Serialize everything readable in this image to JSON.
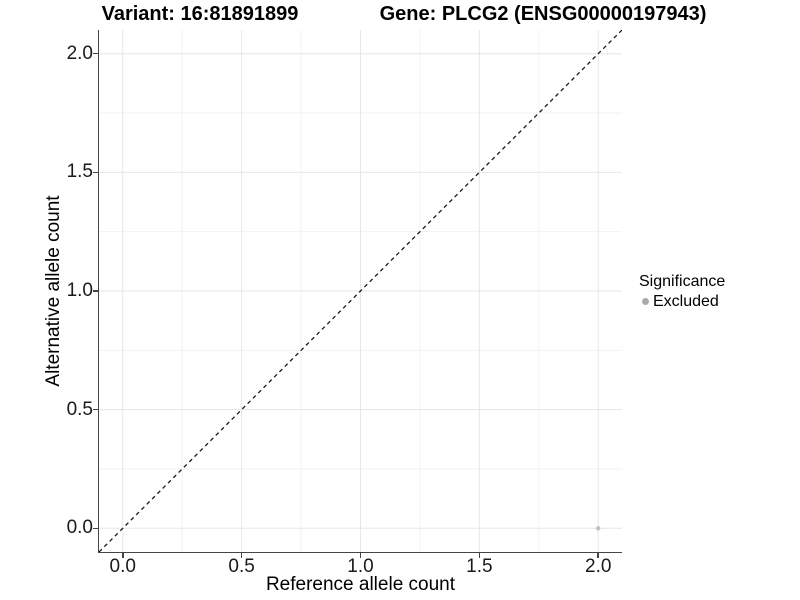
{
  "header": {
    "variant_title": "Variant: 16:81891899",
    "gene_title": "Gene: PLCG2 (ENSG00000197943)"
  },
  "chart_data": {
    "type": "scatter",
    "xlabel": "Reference allele count",
    "ylabel": "Alternative allele count",
    "xlim": [
      -0.1,
      2.1
    ],
    "ylim": [
      -0.1,
      2.1
    ],
    "x_ticks": [
      0.0,
      0.5,
      1.0,
      1.5,
      2.0
    ],
    "y_ticks": [
      0.0,
      0.5,
      1.0,
      1.5,
      2.0
    ],
    "x_minor_ticks": [
      0.25,
      0.75,
      1.25,
      1.75
    ],
    "y_minor_ticks": [
      0.25,
      0.75,
      1.25,
      1.75
    ],
    "tick_format_decimals": 1,
    "grid": "major+minor",
    "reference_line": {
      "style": "dashed",
      "x1": -0.1,
      "y1": -0.1,
      "x2": 2.1,
      "y2": 2.1,
      "color": "#1a1a1a"
    },
    "series": [
      {
        "name": "Excluded",
        "color": "#c0c0c0",
        "point_radius": 2.2,
        "points": [
          {
            "x": 2.0,
            "y": 0.0
          }
        ]
      }
    ],
    "legend": {
      "title": "Significance",
      "position": "right",
      "items": [
        {
          "label": "Excluded",
          "color": "#ababab"
        }
      ]
    }
  },
  "colors": {
    "grid_major": "#e6e6e6",
    "grid_minor": "#f2f2f2",
    "axis_line": "#454545",
    "tick_text": "#1a1a1a"
  }
}
